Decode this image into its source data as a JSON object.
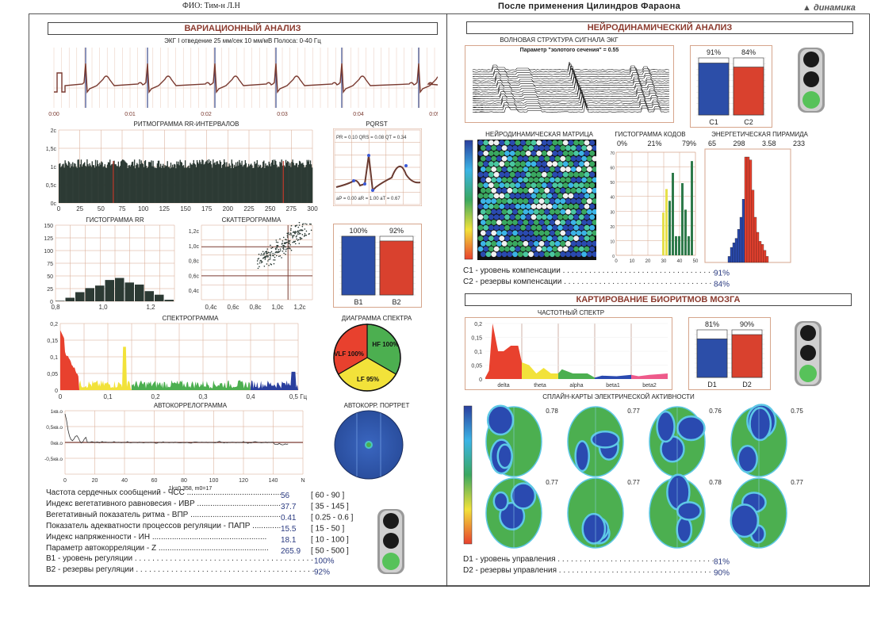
{
  "header": {
    "patient": "ФИО: Тим-н Л.Н",
    "title": "После применения Цилиндров Фараона",
    "logo": "динамика"
  },
  "left": {
    "section_title": "ВАРИАЦИОННЫЙ АНАЛИЗ",
    "ecg": {
      "caption": "ЭКГ I отведение 25 мм/сек 10 мм/мВ Полоса: 0-40 Гц",
      "ticks": [
        "0:00",
        "0:01",
        "0:02",
        "0:03",
        "0:04",
        "0:05"
      ]
    },
    "rhythmogram": {
      "title": "РИТМОГРАММА RR-ИНТЕРВАЛОВ",
      "yticks": [
        "2c",
        "1,5c",
        "1c",
        "0,5c",
        "0c"
      ],
      "xticks": [
        "0",
        "25",
        "50",
        "75",
        "100",
        "125",
        "150",
        "175",
        "200",
        "225",
        "250",
        "275",
        "300"
      ]
    },
    "pqrst": {
      "title": "PQRST",
      "top": "PR = 0.10  QRS = 0.08  QT = 0.34",
      "bottom": "aP = 0.00  aR = 1.00   aT = 0.67"
    },
    "hist_rr": {
      "title": "ГИСТОГРАММА RR",
      "yticks": [
        "150",
        "125",
        "100",
        "75",
        "50",
        "25",
        "0"
      ],
      "xticks": [
        "0,8",
        "1,0",
        "1,2"
      ]
    },
    "scatter": {
      "title": "СКАТТЕРОГРАММА",
      "yticks": [
        "1,2c",
        "1,0c",
        "0,8c",
        "0,6c",
        "0,4c"
      ],
      "xticks": [
        "0,4c",
        "0,6c",
        "0,8c",
        "1,0c",
        "1,2c"
      ]
    },
    "b_bars": {
      "labels": [
        "B1",
        "B2"
      ],
      "values_text": [
        "100%",
        "92%"
      ],
      "values": [
        100,
        92
      ]
    },
    "spectrogram": {
      "title": "СПЕКТРОГРАММА",
      "yticks": [
        "0,2",
        "0,15",
        "0,1",
        "0,05",
        "0"
      ],
      "xticks": [
        "0",
        "0,1",
        "0,2",
        "0,3",
        "0,4",
        "0,5 Гц"
      ]
    },
    "spectrum_pie": {
      "title": "ДИАГРАММА СПЕКТРА",
      "slices": [
        {
          "label": "VLF 100%",
          "color": "#e8412e"
        },
        {
          "label": "HF 100%",
          "color": "#4caf50"
        },
        {
          "label": "LF 95%",
          "color": "#f2e23a"
        }
      ]
    },
    "autocorr": {
      "title": "АВТОКОРРЕЛОГРАММА",
      "yticks": [
        "1кв.о",
        "0,5кв.о",
        "0кв.о",
        "-0,5кв.о"
      ],
      "xticks": [
        "0",
        "20",
        "40",
        "60",
        "80",
        "100",
        "120",
        "140",
        "N"
      ],
      "footer": "1k=0.358, m0=17"
    },
    "portrait": {
      "title": "АВТОКОРР. ПОРТРЕТ"
    },
    "stats": [
      {
        "label": "Частота сердечных сообщений - ЧСС",
        "value": "56",
        "range": "[ 60 - 90 ]"
      },
      {
        "label": "Индекс вегетативного равновесия - ИВР",
        "value": "37.7",
        "range": "[ 35 - 145 ]"
      },
      {
        "label": "Вегетативный показатель ритма - ВПР",
        "value": "0.41",
        "range": "[ 0.25 - 0.6 ]"
      },
      {
        "label": "Показатель адекватности процессов регуляции - ПАПР",
        "value": "15.5",
        "range": "[ 15 - 50 ]"
      },
      {
        "label": "Индекс напряженности - ИН",
        "value": "18.1",
        "range": "[ 10 - 100 ]"
      },
      {
        "label": "Параметр автокорреляции - Z",
        "value": "265.9",
        "range": "[ 50 - 500 ]"
      }
    ],
    "summary": [
      {
        "label": "B1 - уровень регуляции",
        "value": "100%"
      },
      {
        "label": "B2 - резервы регуляции",
        "value": "92%"
      }
    ],
    "traffic_light": "green"
  },
  "right": {
    "section_title": "НЕЙРОДИНАМИЧЕСКИЙ АНАЛИЗ",
    "wave": {
      "title": "ВОЛНОВАЯ СТРУКТУРА СИГНАЛА ЭКГ",
      "param": "Параметр \"золотого сечения\" = 0.55"
    },
    "c_bars": {
      "labels": [
        "C1",
        "C2"
      ],
      "values_text": [
        "91%",
        "84%"
      ],
      "values": [
        91,
        84
      ]
    },
    "matrix": {
      "title": "НЕЙРОДИНАМИЧЕСКАЯ МАТРИЦА"
    },
    "code_hist": {
      "title": "ГИСТОГРАММА КОДОВ",
      "percents": [
        "0%",
        "21%",
        "79%"
      ],
      "yticks": [
        "70",
        "60",
        "50",
        "40",
        "30",
        "20",
        "10",
        "0"
      ],
      "xticks": [
        "0",
        "10",
        "20",
        "30",
        "40",
        "50"
      ]
    },
    "pyramid": {
      "title": "ЭНЕРГЕТИЧЕСКАЯ ПИРАМИДА",
      "values": [
        "65",
        "298",
        "3.58",
        "233"
      ]
    },
    "c_summary": [
      {
        "label": "C1 - уровень компенсации",
        "value": "91%"
      },
      {
        "label": "C2 - резервы компенсации",
        "value": "84%"
      }
    ],
    "brain_title": "КАРТИРОВАНИЕ БИОРИТМОВ МОЗГА",
    "freq": {
      "title": "ЧАСТОТНЫЙ СПЕКТР",
      "yticks": [
        "0,2",
        "0,15",
        "0,1",
        "0,05",
        "0"
      ],
      "bands": [
        "delta",
        "theta",
        "alpha",
        "beta1",
        "beta2"
      ]
    },
    "d_bars": {
      "labels": [
        "D1",
        "D2"
      ],
      "values_text": [
        "81%",
        "90%"
      ],
      "values": [
        81,
        90
      ]
    },
    "spline": {
      "title": "СПЛАЙН-КАРТЫ ЭЛЕКТРИЧЕСКОЙ АКТИВНОСТИ",
      "values": [
        "0.78",
        "0.77",
        "0.76",
        "0.75",
        "0.77",
        "0.77",
        "0.78",
        "0.77"
      ]
    },
    "d_summary": [
      {
        "label": "D1 - уровень управления",
        "value": "81%"
      },
      {
        "label": "D2 - резервы управления",
        "value": "90%"
      }
    ],
    "traffic_light_top": "green",
    "traffic_light_mid": "green"
  },
  "colors": {
    "blue_bar": "#2c4ea8",
    "red_bar": "#d9412e",
    "grid": "#d6a58c",
    "dark_bar": "#2c3a34",
    "title_color": "#8b3a2e"
  }
}
